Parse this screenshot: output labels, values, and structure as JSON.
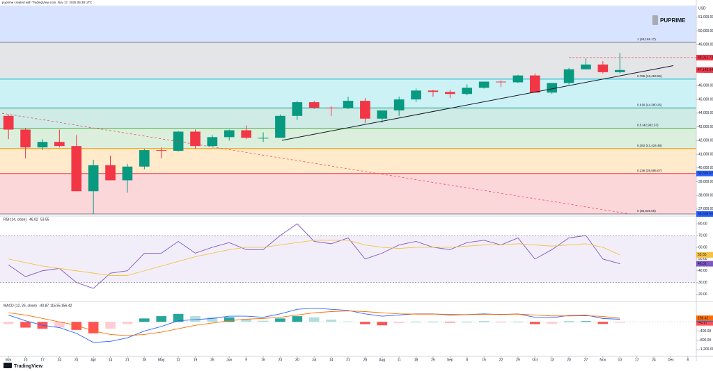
{
  "header": {
    "caption": "puprime created with TradingView.com, Nov 17, 2025 05:38 UTC",
    "currency": "USD",
    "watermark": "PUPRIME",
    "brand": "TradingView"
  },
  "chart_data": [
    {
      "type": "candlestick",
      "categories": [
        "Mar",
        "10",
        "17",
        "24",
        "31",
        "Apr",
        "14",
        "21",
        "28",
        "May",
        "12",
        "19",
        "26",
        "Jun",
        "9",
        "16",
        "23",
        "30",
        "Jul",
        "14",
        "21",
        "28",
        "Aug",
        "11",
        "18",
        "25",
        "Sep",
        "8",
        "15",
        "22",
        "29",
        "Oct",
        "13",
        "20",
        "27",
        "Nov",
        "10",
        "17",
        "24",
        "Dec",
        "8"
      ],
      "open": [
        43800,
        42800,
        41500,
        41900,
        41600,
        38300,
        40200,
        39100,
        40100,
        41300,
        41250,
        42650,
        41600,
        42250,
        42750,
        42200,
        42200,
        43800,
        44800,
        44400,
        44350,
        44900,
        43600,
        44200,
        45000,
        45650,
        45550,
        45400,
        45850,
        46300,
        46250,
        46750,
        45500,
        46200,
        47200,
        47550,
        46990,
        null,
        null,
        null,
        null
      ],
      "high": [
        43900,
        42900,
        42100,
        42800,
        42400,
        40600,
        40900,
        40300,
        41400,
        41500,
        42700,
        42800,
        42400,
        42800,
        43100,
        42600,
        43900,
        44900,
        44900,
        44500,
        45200,
        45100,
        44200,
        45200,
        45800,
        45700,
        45700,
        46100,
        46300,
        46400,
        46800,
        46900,
        46200,
        47300,
        48000,
        47800,
        48400,
        null,
        null,
        null,
        null
      ],
      "low": [
        42100,
        40700,
        41300,
        41500,
        38300,
        36640,
        39100,
        38200,
        39900,
        40700,
        41200,
        41400,
        41500,
        42000,
        42100,
        41900,
        42200,
        43500,
        44300,
        43800,
        44300,
        43300,
        43300,
        43800,
        44800,
        45200,
        45100,
        45300,
        45800,
        45900,
        46200,
        45500,
        45400,
        46100,
        47200,
        46900,
        46900,
        null,
        null,
        null,
        null
      ],
      "close": [
        42800,
        41500,
        41900,
        41600,
        38300,
        40200,
        39100,
        40100,
        41300,
        41250,
        42650,
        41600,
        42250,
        42750,
        42200,
        42200,
        43800,
        44800,
        44400,
        44350,
        44900,
        43600,
        44200,
        45000,
        45650,
        45550,
        45400,
        45850,
        46300,
        46250,
        46750,
        45500,
        46200,
        47200,
        47550,
        46990,
        47150,
        null,
        null,
        null,
        null
      ],
      "up_color": "#089981",
      "down_color": "#f23645",
      "ylim": [
        36538,
        51853
      ],
      "yticks": [
        {
          "value": 37000,
          "label": "37,000.00"
        },
        {
          "value": 38000,
          "label": "38,000.00"
        },
        {
          "value": 39000,
          "label": "39,000.00"
        },
        {
          "value": 40000,
          "label": "40,000.00"
        },
        {
          "value": 41000,
          "label": "41,000.00"
        },
        {
          "value": 42000,
          "label": "42,000.00"
        },
        {
          "value": 43000,
          "label": "43,000.00"
        },
        {
          "value": 44000,
          "label": "44,000.00"
        },
        {
          "value": 45000,
          "label": "45,000.00"
        },
        {
          "value": 46000,
          "label": "46,000.00"
        },
        {
          "value": 47000,
          "label": "47,000.00"
        },
        {
          "value": 48000,
          "label": "48,000.00"
        },
        {
          "value": 49000,
          "label": "49,000.00"
        },
        {
          "value": 50000,
          "label": "50,000.00"
        },
        {
          "value": 51000,
          "label": "51,000.00"
        }
      ],
      "fib_levels": [
        {
          "value": 36639.56,
          "label": "0 (36,639.56)",
          "color": "#787b86"
        },
        {
          "value": 39595.07,
          "label": "0.236 (39,595.07)",
          "color": "#f23645"
        },
        {
          "value": 41424.48,
          "label": "0.382 (41,424.48)",
          "color": "#ff9800"
        },
        {
          "value": 42902.37,
          "label": "0.5 (42,902.37)",
          "color": "#4caf50"
        },
        {
          "value": 44380.26,
          "label": "0.618 (44,380.26)",
          "color": "#089981"
        },
        {
          "value": 46484.56,
          "label": "0.786 (46,484.56)",
          "color": "#00bcd4"
        },
        {
          "value": 49165.17,
          "label": "1 (49,165.17)",
          "color": "#787b86"
        }
      ],
      "price_labels": [
        {
          "value": 48051.73,
          "label": "48,051.73",
          "color": "#f23645",
          "dashed": true
        },
        {
          "value": 47148.94,
          "label": "47,148.94",
          "color": "#f23645"
        },
        {
          "value": 39595.07,
          "label": "39,595.07",
          "color": "#2962ff"
        },
        {
          "value": 36639.56,
          "label": "36,639.56",
          "color": "#2962ff"
        }
      ]
    },
    {
      "type": "line",
      "title": "RSI (14, close)",
      "series": [
        {
          "color": "#7e57c2",
          "values": [
            45,
            35,
            40,
            42,
            30,
            25,
            38,
            40,
            55,
            55,
            65,
            55,
            60,
            64,
            58,
            58,
            70,
            80,
            65,
            63,
            68,
            50,
            55,
            62,
            65,
            60,
            58,
            64,
            66,
            62,
            68,
            50,
            58,
            68,
            70,
            50,
            46.02,
            null,
            null,
            null,
            null
          ]
        },
        {
          "color": "#f5c242",
          "values": [
            50,
            47,
            44,
            42,
            40,
            38,
            36,
            36,
            40,
            44,
            48,
            52,
            55,
            58,
            60,
            60,
            62,
            64,
            66,
            66,
            66,
            62,
            60,
            59,
            60,
            60,
            60,
            61,
            62,
            62,
            63,
            62,
            61,
            62,
            63,
            60,
            53.55,
            null,
            null,
            null,
            null
          ]
        }
      ],
      "ylim": [
        15,
        86
      ],
      "yticks": [
        {
          "value": 20,
          "label": "20.00"
        },
        {
          "value": 30,
          "label": "30.00"
        },
        {
          "value": 40,
          "label": "40.00"
        },
        {
          "value": 50,
          "label": "50.00"
        },
        {
          "value": 60,
          "label": "60.00"
        },
        {
          "value": 70,
          "label": "70.00"
        },
        {
          "value": 80,
          "label": "80.00"
        }
      ],
      "band": [
        30,
        70
      ],
      "band_color": "#7e57c2"
    },
    {
      "type": "macd",
      "title": "MACD (12, 26, close)",
      "histogram": {
        "values": [
          -100,
          -250,
          -300,
          -250,
          -350,
          -500,
          -300,
          -100,
          150,
          250,
          350,
          250,
          200,
          200,
          130,
          50,
          150,
          250,
          200,
          100,
          20,
          -100,
          -150,
          -50,
          10,
          10,
          -30,
          0,
          20,
          -10,
          10,
          -100,
          -80,
          20,
          30,
          -90,
          -40.87,
          null,
          null,
          null,
          null
        ],
        "colors": [
          "#26a69a",
          "#b2dfdb",
          "#ffcdd2",
          "#ff5252"
        ]
      },
      "series": [
        {
          "color": "#2962ff",
          "values": [
            300,
            50,
            -150,
            -250,
            -500,
            -900,
            -850,
            -700,
            -400,
            -200,
            50,
            100,
            150,
            250,
            250,
            200,
            350,
            550,
            600,
            550,
            500,
            350,
            250,
            300,
            350,
            350,
            300,
            320,
            350,
            320,
            350,
            200,
            180,
            280,
            300,
            150,
            115.55,
            null,
            null,
            null,
            null
          ]
        },
        {
          "color": "#ff6d00",
          "values": [
            400,
            300,
            150,
            0,
            -150,
            -400,
            -550,
            -600,
            -550,
            -450,
            -300,
            -150,
            -50,
            50,
            120,
            150,
            200,
            300,
            400,
            450,
            480,
            450,
            400,
            350,
            340,
            340,
            330,
            320,
            330,
            330,
            340,
            300,
            260,
            260,
            270,
            240,
            156.42,
            null,
            null,
            null,
            null
          ]
        }
      ],
      "ylim": [
        -1480,
        830
      ],
      "yticks": [
        {
          "value": -1200,
          "label": "−1,200.00"
        },
        {
          "value": -800,
          "label": "−800.00"
        },
        {
          "value": -400,
          "label": "−400.00"
        }
      ]
    }
  ]
}
